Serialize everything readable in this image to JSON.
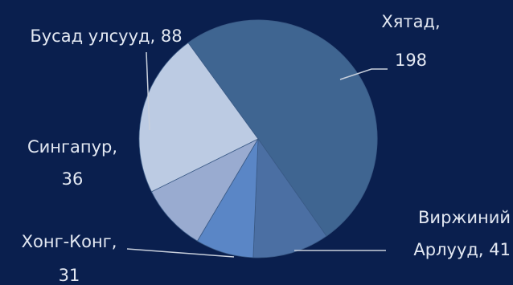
{
  "chart_data": {
    "type": "pie",
    "title": "",
    "slices": [
      {
        "label": "Хятад",
        "value": 198,
        "color": "#3f6591",
        "label_lines": [
          "Хятад,",
          "198"
        ]
      },
      {
        "label": "Виржиний Арлууд",
        "value": 41,
        "color": "#4b6fa3",
        "label_lines": [
          "Виржиний",
          "Арлууд, 41"
        ]
      },
      {
        "label": "Хонг-Конг",
        "value": 31,
        "color": "#5a86c6",
        "label_lines": [
          "Хонг-Конг,",
          "31"
        ]
      },
      {
        "label": "Сингапур",
        "value": 36,
        "color": "#99abd0",
        "label_lines": [
          "Сингапур,",
          "36"
        ]
      },
      {
        "label": "Бусад улсууд",
        "value": 88,
        "color": "#bccbe3",
        "label_lines": [
          "Бусад улсууд, 88"
        ]
      }
    ],
    "legend": "none"
  }
}
